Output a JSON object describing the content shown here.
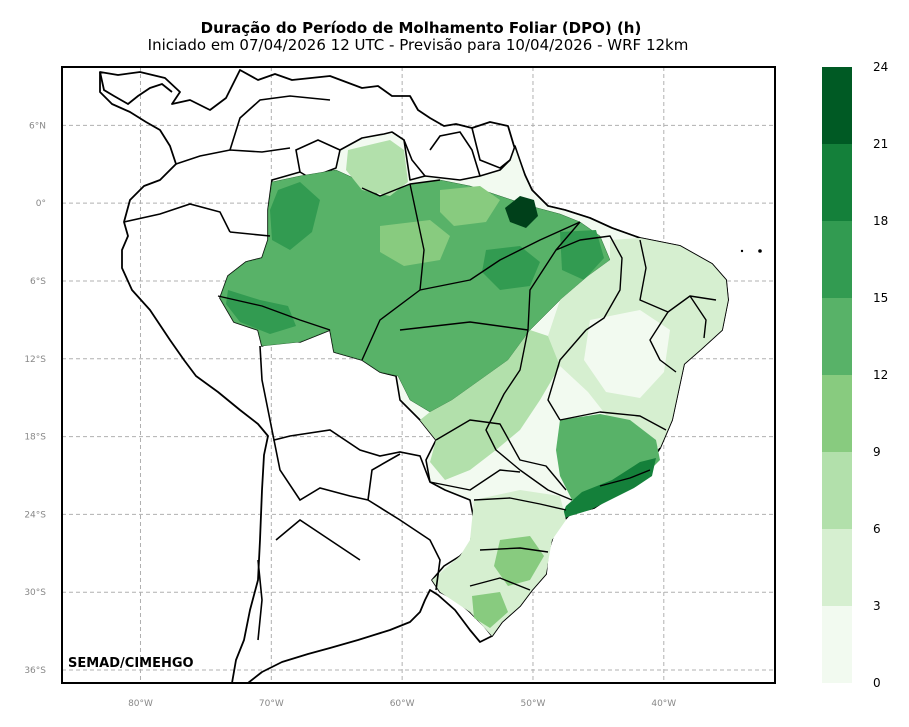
{
  "title": "Duração do Período de Molhamento Foliar (DPO) (h)",
  "subtitle": "Iniciado em 07/04/2026 12 UTC - Previsão para 10/04/2026 - WRF 12km",
  "credit": "SEMAD/CIMEHGO",
  "map": {
    "lon_range": [
      -86,
      -31.5
    ],
    "lat_range": [
      -37,
      10.5
    ],
    "lon_ticks": [
      {
        "value": -80,
        "label": "80°W"
      },
      {
        "value": -70,
        "label": "70°W"
      },
      {
        "value": -60,
        "label": "60°W"
      },
      {
        "value": -50,
        "label": "50°W"
      },
      {
        "value": -40,
        "label": "40°W"
      }
    ],
    "lat_ticks": [
      {
        "value": 6,
        "label": "6°N"
      },
      {
        "value": 0,
        "label": "0°"
      },
      {
        "value": -6,
        "label": "6°S"
      },
      {
        "value": -12,
        "label": "12°S"
      },
      {
        "value": -18,
        "label": "18°S"
      },
      {
        "value": -24,
        "label": "24°S"
      },
      {
        "value": -30,
        "label": "30°S"
      },
      {
        "value": -36,
        "label": "36°S"
      }
    ],
    "gridlines": true
  },
  "colorbar": {
    "levels": [
      0,
      3,
      6,
      9,
      12,
      15,
      18,
      21,
      24
    ],
    "labels": [
      "0",
      "3",
      "6",
      "9",
      "12",
      "15",
      "18",
      "21",
      "24"
    ],
    "colors": [
      "#f2faf0",
      "#d6efd0",
      "#b2e0ab",
      "#88cb7f",
      "#58b268",
      "#329b51",
      "#14803a",
      "#005a24"
    ]
  }
}
